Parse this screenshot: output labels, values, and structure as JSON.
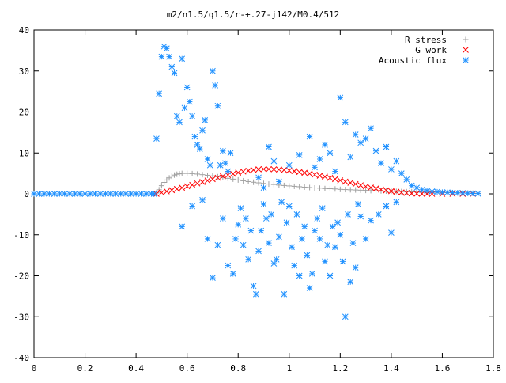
{
  "chart_data": {
    "type": "scatter",
    "title": "m2/n1.5/q1.5/r-+.27-j142/M0.4/512",
    "xlabel": "",
    "ylabel": "",
    "xlim": [
      0,
      1.8
    ],
    "ylim": [
      -40,
      40
    ],
    "x_ticks": [
      0,
      0.2,
      0.4,
      0.6,
      0.8,
      1,
      1.2,
      1.4,
      1.6,
      1.8
    ],
    "x_tick_labels": [
      "0",
      "0.2",
      "0.4",
      "0.6",
      "0.8",
      "1",
      "1.2",
      "1.4",
      "1.6",
      "1.8"
    ],
    "y_ticks": [
      -40,
      -30,
      -20,
      -10,
      0,
      10,
      20,
      30,
      40
    ],
    "y_tick_labels": [
      "-40",
      "-30",
      "-20",
      "-10",
      "0",
      "10",
      "20",
      "30",
      "40"
    ],
    "grid": false,
    "legend_position": "top-right",
    "series": [
      {
        "name": "R stress",
        "marker": "plus",
        "color": "#a0a0a0",
        "points": [
          [
            0.0,
            0
          ],
          [
            0.02,
            0
          ],
          [
            0.04,
            0
          ],
          [
            0.06,
            0
          ],
          [
            0.08,
            0
          ],
          [
            0.1,
            0
          ],
          [
            0.12,
            0
          ],
          [
            0.14,
            0
          ],
          [
            0.16,
            0
          ],
          [
            0.18,
            0
          ],
          [
            0.2,
            0
          ],
          [
            0.22,
            0
          ],
          [
            0.24,
            0
          ],
          [
            0.26,
            0
          ],
          [
            0.28,
            0
          ],
          [
            0.3,
            0
          ],
          [
            0.32,
            0
          ],
          [
            0.34,
            0
          ],
          [
            0.36,
            0
          ],
          [
            0.38,
            0
          ],
          [
            0.4,
            0
          ],
          [
            0.42,
            0
          ],
          [
            0.44,
            0
          ],
          [
            0.46,
            0
          ],
          [
            0.48,
            0.2
          ],
          [
            0.49,
            1.0
          ],
          [
            0.5,
            2.0
          ],
          [
            0.51,
            2.8
          ],
          [
            0.52,
            3.4
          ],
          [
            0.53,
            3.9
          ],
          [
            0.54,
            4.3
          ],
          [
            0.55,
            4.6
          ],
          [
            0.56,
            4.8
          ],
          [
            0.57,
            4.9
          ],
          [
            0.58,
            5.0
          ],
          [
            0.6,
            5.0
          ],
          [
            0.62,
            4.95
          ],
          [
            0.64,
            4.85
          ],
          [
            0.66,
            4.7
          ],
          [
            0.68,
            4.55
          ],
          [
            0.7,
            4.4
          ],
          [
            0.72,
            4.2
          ],
          [
            0.74,
            4.0
          ],
          [
            0.76,
            3.8
          ],
          [
            0.78,
            3.6
          ],
          [
            0.8,
            3.4
          ],
          [
            0.82,
            3.2
          ],
          [
            0.84,
            3.0
          ],
          [
            0.86,
            2.85
          ],
          [
            0.88,
            2.7
          ],
          [
            0.9,
            2.55
          ],
          [
            0.92,
            2.4
          ],
          [
            0.94,
            2.3
          ],
          [
            0.96,
            2.15
          ],
          [
            0.98,
            2.05
          ],
          [
            1.0,
            1.95
          ],
          [
            1.02,
            1.85
          ],
          [
            1.04,
            1.75
          ],
          [
            1.06,
            1.65
          ],
          [
            1.08,
            1.55
          ],
          [
            1.1,
            1.45
          ],
          [
            1.12,
            1.4
          ],
          [
            1.14,
            1.3
          ],
          [
            1.16,
            1.25
          ],
          [
            1.18,
            1.2
          ],
          [
            1.2,
            1.1
          ],
          [
            1.22,
            1.05
          ],
          [
            1.24,
            1.0
          ],
          [
            1.26,
            0.95
          ],
          [
            1.28,
            0.9
          ],
          [
            1.3,
            0.85
          ],
          [
            1.32,
            0.8
          ],
          [
            1.34,
            0.75
          ],
          [
            1.36,
            0.72
          ],
          [
            1.38,
            0.68
          ],
          [
            1.4,
            0.64
          ],
          [
            1.42,
            0.6
          ],
          [
            1.44,
            0.56
          ],
          [
            1.46,
            0.52
          ],
          [
            1.48,
            0.48
          ],
          [
            1.5,
            0.45
          ],
          [
            1.52,
            0.42
          ],
          [
            1.54,
            0.4
          ],
          [
            1.56,
            0.37
          ],
          [
            1.58,
            0.34
          ],
          [
            1.6,
            0.32
          ],
          [
            1.62,
            0.29
          ],
          [
            1.64,
            0.26
          ],
          [
            1.66,
            0.23
          ],
          [
            1.68,
            0.2
          ],
          [
            1.7,
            0.17
          ],
          [
            1.72,
            0.15
          ],
          [
            1.74,
            0.12
          ]
        ]
      },
      {
        "name": "G work",
        "marker": "cross",
        "color": "#ff0000",
        "points": [
          [
            0.48,
            0.0
          ],
          [
            0.5,
            0.3
          ],
          [
            0.52,
            0.6
          ],
          [
            0.54,
            0.9
          ],
          [
            0.56,
            1.2
          ],
          [
            0.58,
            1.5
          ],
          [
            0.6,
            1.85
          ],
          [
            0.62,
            2.2
          ],
          [
            0.64,
            2.55
          ],
          [
            0.66,
            2.9
          ],
          [
            0.68,
            3.25
          ],
          [
            0.7,
            3.6
          ],
          [
            0.72,
            3.95
          ],
          [
            0.74,
            4.3
          ],
          [
            0.76,
            4.6
          ],
          [
            0.78,
            4.9
          ],
          [
            0.8,
            5.2
          ],
          [
            0.82,
            5.45
          ],
          [
            0.84,
            5.65
          ],
          [
            0.86,
            5.85
          ],
          [
            0.88,
            6.0
          ],
          [
            0.9,
            6.05
          ],
          [
            0.92,
            6.05
          ],
          [
            0.94,
            6.0
          ],
          [
            0.96,
            5.95
          ],
          [
            0.98,
            5.85
          ],
          [
            1.0,
            5.7
          ],
          [
            1.02,
            5.55
          ],
          [
            1.04,
            5.35
          ],
          [
            1.06,
            5.15
          ],
          [
            1.08,
            4.95
          ],
          [
            1.1,
            4.7
          ],
          [
            1.12,
            4.45
          ],
          [
            1.14,
            4.2
          ],
          [
            1.16,
            3.9
          ],
          [
            1.18,
            3.6
          ],
          [
            1.2,
            3.3
          ],
          [
            1.22,
            3.0
          ],
          [
            1.24,
            2.7
          ],
          [
            1.26,
            2.4
          ],
          [
            1.28,
            2.1
          ],
          [
            1.3,
            1.8
          ],
          [
            1.32,
            1.55
          ],
          [
            1.34,
            1.3
          ],
          [
            1.36,
            1.05
          ],
          [
            1.38,
            0.85
          ],
          [
            1.4,
            0.65
          ],
          [
            1.42,
            0.5
          ],
          [
            1.44,
            0.35
          ],
          [
            1.46,
            0.22
          ],
          [
            1.48,
            0.12
          ],
          [
            1.5,
            0.05
          ],
          [
            1.52,
            0.02
          ],
          [
            1.54,
            0.0
          ],
          [
            1.56,
            0.0
          ],
          [
            1.6,
            0.0
          ],
          [
            1.64,
            0.0
          ],
          [
            1.68,
            0.0
          ],
          [
            1.72,
            0.0
          ]
        ]
      },
      {
        "name": "Acoustic flux",
        "marker": "star",
        "color": "#1e90ff",
        "points": [
          [
            0.0,
            0
          ],
          [
            0.02,
            0
          ],
          [
            0.04,
            0
          ],
          [
            0.06,
            0
          ],
          [
            0.08,
            0
          ],
          [
            0.1,
            0
          ],
          [
            0.12,
            0
          ],
          [
            0.14,
            0
          ],
          [
            0.16,
            0
          ],
          [
            0.18,
            0
          ],
          [
            0.2,
            0
          ],
          [
            0.22,
            0
          ],
          [
            0.24,
            0
          ],
          [
            0.26,
            0
          ],
          [
            0.28,
            0
          ],
          [
            0.3,
            0
          ],
          [
            0.32,
            0
          ],
          [
            0.34,
            0
          ],
          [
            0.36,
            0
          ],
          [
            0.38,
            0
          ],
          [
            0.4,
            0
          ],
          [
            0.42,
            0
          ],
          [
            0.44,
            0
          ],
          [
            0.46,
            0
          ],
          [
            0.47,
            0
          ],
          [
            0.48,
            13.5
          ],
          [
            0.49,
            24.5
          ],
          [
            0.5,
            33.5
          ],
          [
            0.51,
            36.0
          ],
          [
            0.52,
            35.5
          ],
          [
            0.53,
            33.5
          ],
          [
            0.54,
            31.0
          ],
          [
            0.55,
            29.5
          ],
          [
            0.56,
            19.0
          ],
          [
            0.57,
            17.5
          ],
          [
            0.58,
            33.0
          ],
          [
            0.59,
            21.0
          ],
          [
            0.6,
            26.0
          ],
          [
            0.61,
            22.5
          ],
          [
            0.62,
            19.0
          ],
          [
            0.63,
            14.0
          ],
          [
            0.64,
            12.0
          ],
          [
            0.65,
            11.0
          ],
          [
            0.66,
            15.5
          ],
          [
            0.67,
            18.0
          ],
          [
            0.68,
            8.5
          ],
          [
            0.69,
            7.0
          ],
          [
            0.7,
            30.0
          ],
          [
            0.71,
            26.5
          ],
          [
            0.72,
            21.5
          ],
          [
            0.73,
            7.0
          ],
          [
            0.74,
            10.5
          ],
          [
            0.75,
            7.5
          ],
          [
            0.76,
            5.5
          ],
          [
            0.77,
            10.0
          ],
          [
            0.58,
            -8.0
          ],
          [
            0.62,
            -3.0
          ],
          [
            0.66,
            -1.5
          ],
          [
            0.68,
            -11.0
          ],
          [
            0.7,
            -20.5
          ],
          [
            0.72,
            -12.5
          ],
          [
            0.74,
            -6.0
          ],
          [
            0.76,
            -17.5
          ],
          [
            0.78,
            -19.5
          ],
          [
            0.79,
            -11.0
          ],
          [
            0.8,
            -7.5
          ],
          [
            0.81,
            -3.5
          ],
          [
            0.82,
            -12.5
          ],
          [
            0.83,
            -6.0
          ],
          [
            0.84,
            -16.0
          ],
          [
            0.85,
            -9.0
          ],
          [
            0.86,
            -22.5
          ],
          [
            0.87,
            -24.5
          ],
          [
            0.88,
            -14.0
          ],
          [
            0.89,
            -9.0
          ],
          [
            0.9,
            -2.5
          ],
          [
            0.91,
            -6.0
          ],
          [
            0.92,
            -12.0
          ],
          [
            0.93,
            -5.0
          ],
          [
            0.94,
            -17.0
          ],
          [
            0.95,
            -16.0
          ],
          [
            0.96,
            -10.5
          ],
          [
            0.97,
            -2.0
          ],
          [
            0.98,
            -24.5
          ],
          [
            0.99,
            -7.0
          ],
          [
            1.0,
            -3.0
          ],
          [
            1.01,
            -13.0
          ],
          [
            1.02,
            -17.5
          ],
          [
            1.03,
            -5.0
          ],
          [
            1.04,
            -20.0
          ],
          [
            1.05,
            -11.0
          ],
          [
            1.06,
            -8.0
          ],
          [
            1.07,
            -15.0
          ],
          [
            1.08,
            -23.0
          ],
          [
            1.09,
            -19.5
          ],
          [
            1.1,
            -9.0
          ],
          [
            1.11,
            -6.0
          ],
          [
            1.12,
            -11.0
          ],
          [
            1.13,
            -3.5
          ],
          [
            1.14,
            -16.5
          ],
          [
            1.15,
            -12.5
          ],
          [
            1.16,
            -20.0
          ],
          [
            1.17,
            -8.0
          ],
          [
            1.18,
            -13.0
          ],
          [
            1.19,
            -7.0
          ],
          [
            1.2,
            -10.0
          ],
          [
            1.21,
            -16.5
          ],
          [
            1.22,
            -30.0
          ],
          [
            1.23,
            -5.0
          ],
          [
            1.24,
            -21.5
          ],
          [
            1.25,
            -12.0
          ],
          [
            1.26,
            -18.0
          ],
          [
            1.27,
            -2.5
          ],
          [
            1.28,
            -5.5
          ],
          [
            1.3,
            -11.0
          ],
          [
            1.32,
            -6.5
          ],
          [
            1.35,
            -5.0
          ],
          [
            1.38,
            -3.0
          ],
          [
            1.4,
            -9.5
          ],
          [
            1.42,
            -2.0
          ],
          [
            0.88,
            4.0
          ],
          [
            0.9,
            1.5
          ],
          [
            0.92,
            11.5
          ],
          [
            0.94,
            8.0
          ],
          [
            0.96,
            3.0
          ],
          [
            1.0,
            7.0
          ],
          [
            1.04,
            9.5
          ],
          [
            1.08,
            14.0
          ],
          [
            1.1,
            6.5
          ],
          [
            1.12,
            8.5
          ],
          [
            1.14,
            12.0
          ],
          [
            1.16,
            10.0
          ],
          [
            1.18,
            5.5
          ],
          [
            1.2,
            23.5
          ],
          [
            1.22,
            17.5
          ],
          [
            1.24,
            9.0
          ],
          [
            1.26,
            14.5
          ],
          [
            1.28,
            12.5
          ],
          [
            1.3,
            13.5
          ],
          [
            1.32,
            16.0
          ],
          [
            1.34,
            10.5
          ],
          [
            1.36,
            7.5
          ],
          [
            1.38,
            11.5
          ],
          [
            1.4,
            6.0
          ],
          [
            1.42,
            8.0
          ],
          [
            1.44,
            5.0
          ],
          [
            1.46,
            3.5
          ],
          [
            1.48,
            2.0
          ],
          [
            1.5,
            1.5
          ],
          [
            1.52,
            1.0
          ],
          [
            1.54,
            0.8
          ],
          [
            1.56,
            0.6
          ],
          [
            1.58,
            0.5
          ],
          [
            1.6,
            0.4
          ],
          [
            1.62,
            0.35
          ],
          [
            1.64,
            0.3
          ],
          [
            1.66,
            0.25
          ],
          [
            1.68,
            0.2
          ],
          [
            1.7,
            0.15
          ],
          [
            1.72,
            0.1
          ],
          [
            1.74,
            0.05
          ]
        ]
      }
    ]
  }
}
